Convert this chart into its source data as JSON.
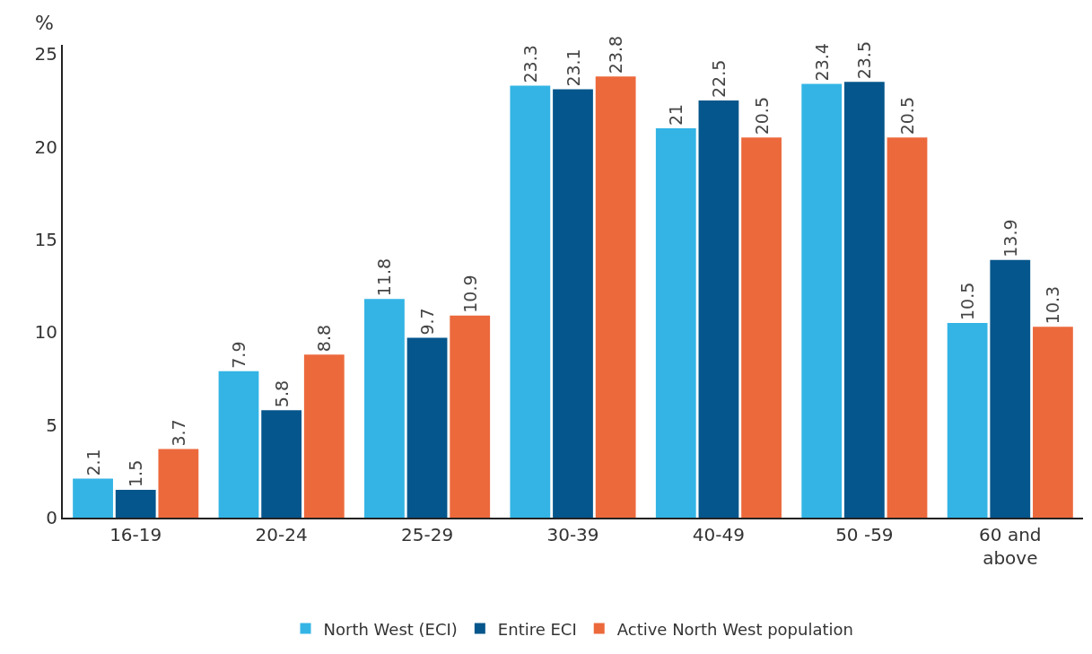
{
  "chart_data": {
    "type": "bar",
    "ylabel": "%",
    "categories": [
      "16-19",
      "20-24",
      "25-29",
      "30-39",
      "40-49",
      "50 -59",
      "60 and above"
    ],
    "series": [
      {
        "name": "North West (ECI)",
        "color": "#33b4e5",
        "values": [
          2.1,
          7.9,
          11.8,
          23.3,
          21,
          23.4,
          10.5
        ]
      },
      {
        "name": "Entire ECI",
        "color": "#05568c",
        "values": [
          1.5,
          5.8,
          9.7,
          23.1,
          22.5,
          23.5,
          13.9
        ]
      },
      {
        "name": "Active North West population",
        "color": "#ec693c",
        "values": [
          3.7,
          8.8,
          10.9,
          23.8,
          20.5,
          20.5,
          10.3
        ]
      }
    ],
    "ylim": [
      0,
      25.5
    ],
    "yticks": [
      0,
      5,
      10,
      15,
      20,
      25
    ],
    "data_labels": true,
    "legend": "bottom"
  }
}
